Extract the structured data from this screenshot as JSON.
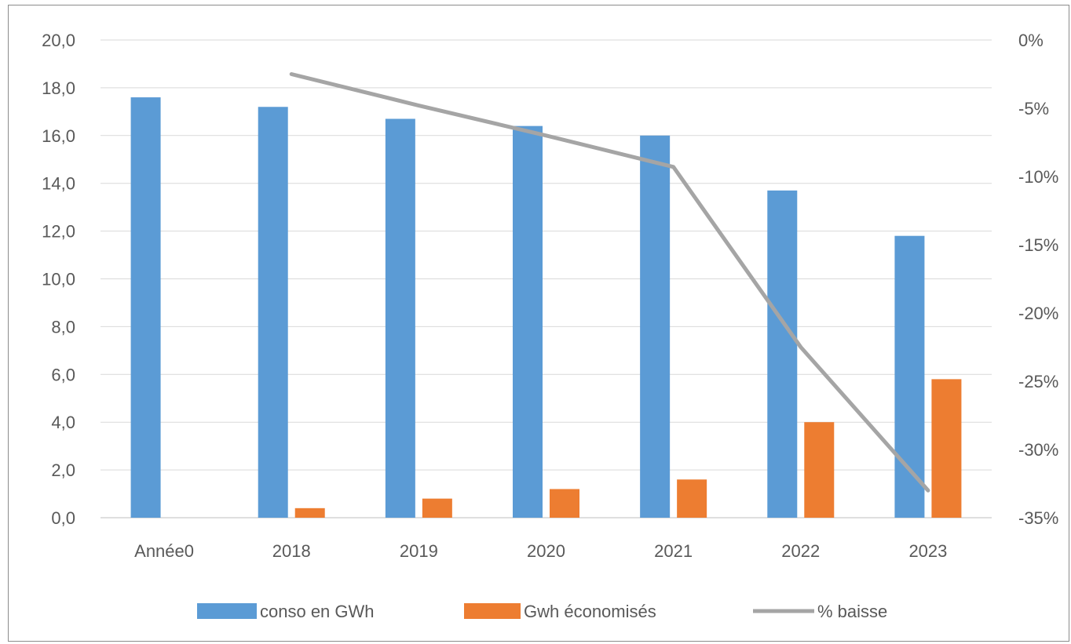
{
  "chart_data": {
    "type": "bar",
    "categories": [
      "Année0",
      "2018",
      "2019",
      "2020",
      "2021",
      "2022",
      "2023"
    ],
    "series": [
      {
        "name": "conso en GWh",
        "type": "bar",
        "axis": "left",
        "color": "#5b9bd5",
        "values": [
          17.6,
          17.2,
          16.7,
          16.4,
          16.0,
          13.7,
          11.8
        ]
      },
      {
        "name": "Gwh économisés",
        "type": "bar",
        "axis": "left",
        "color": "#ed7d31",
        "values": [
          0.0,
          0.4,
          0.8,
          1.2,
          1.6,
          4.0,
          5.8
        ]
      },
      {
        "name": "% baisse",
        "type": "line",
        "axis": "right",
        "color": "#a5a5a5",
        "values": [
          null,
          -2.5,
          -4.8,
          -7.0,
          -9.3,
          -22.5,
          -33.0
        ]
      }
    ],
    "y_left": {
      "min": 0,
      "max": 20,
      "ticks": [
        "0,0",
        "2,0",
        "4,0",
        "6,0",
        "8,0",
        "10,0",
        "12,0",
        "14,0",
        "16,0",
        "18,0",
        "20,0"
      ]
    },
    "y_right": {
      "min": -35,
      "max": 0,
      "ticks": [
        "-35%",
        "-30%",
        "-25%",
        "-20%",
        "-15%",
        "-10%",
        "-5%",
        "0%"
      ]
    },
    "grid": true,
    "legend_position": "bottom"
  }
}
